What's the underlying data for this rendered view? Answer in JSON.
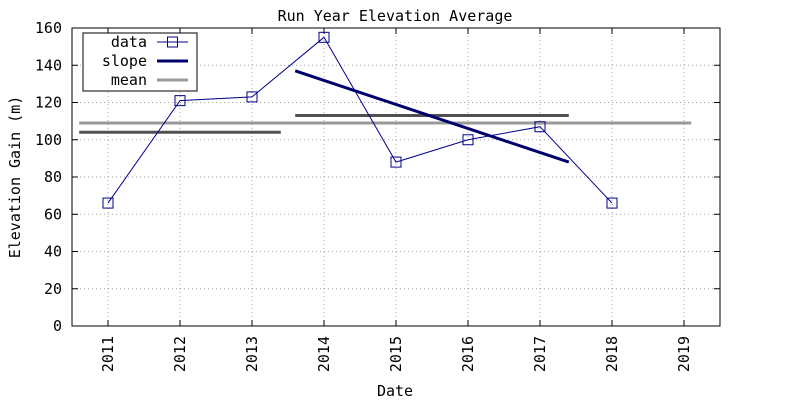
{
  "chart_data": {
    "type": "line",
    "title": "Run Year Elevation Average",
    "xlabel": "Date",
    "ylabel": "Elevation Gain (m)",
    "xlim": [
      2010.5,
      2019.5
    ],
    "ylim": [
      0,
      160
    ],
    "x_ticks": [
      "2011",
      "2012",
      "2013",
      "2014",
      "2015",
      "2016",
      "2017",
      "2018",
      "2019"
    ],
    "y_ticks": [
      "0",
      "20",
      "40",
      "60",
      "80",
      "100",
      "120",
      "140",
      "160"
    ],
    "grid": true,
    "legend_position": "top-left",
    "legend": [
      "data",
      "slope",
      "mean"
    ],
    "series": [
      {
        "name": "data",
        "x": [
          2011,
          2012,
          2013,
          2014,
          2015,
          2016,
          2017,
          2018
        ],
        "values": [
          66,
          121,
          123,
          155,
          88,
          100,
          107,
          66
        ]
      }
    ],
    "slope_line": {
      "x": [
        2013.6,
        2017.4
      ],
      "y": [
        137,
        88
      ]
    },
    "mean_lines": [
      {
        "x": [
          2010.6,
          2019.1
        ],
        "y": 109
      },
      {
        "x": [
          2010.6,
          2013.4
        ],
        "y": 104
      },
      {
        "x": [
          2013.6,
          2017.4
        ],
        "y": 113
      }
    ],
    "colors": {
      "data": "#00008b",
      "slope": "#00006e",
      "mean": "#999999",
      "submean": "#505050"
    }
  }
}
